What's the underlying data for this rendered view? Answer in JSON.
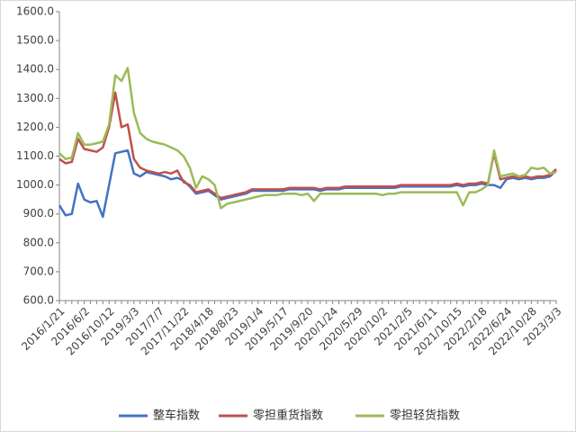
{
  "chart_data": {
    "type": "line",
    "categories": [
      "2016/1/21",
      null,
      null,
      null,
      "2016/6/2",
      null,
      null,
      null,
      "2016/10/12",
      null,
      null,
      null,
      "2019/3/3",
      null,
      null,
      null,
      "2017/7/7",
      null,
      null,
      null,
      "2017/11/22",
      null,
      null,
      null,
      "2018/4/18",
      null,
      null,
      null,
      "2018/8/23",
      null,
      null,
      null,
      "2019/1/4",
      null,
      null,
      null,
      "2019/5/17",
      null,
      null,
      null,
      "2019/9/20",
      null,
      null,
      null,
      "2020/1/24",
      null,
      null,
      null,
      "2020/5/29",
      null,
      null,
      null,
      "2020/10/2",
      null,
      null,
      null,
      "2021/2/5",
      null,
      null,
      null,
      "2021/6/11",
      null,
      null,
      null,
      "2021/10/15",
      null,
      null,
      null,
      "2022/2/18",
      null,
      null,
      null,
      "2022/6/24",
      null,
      null,
      null,
      "2022/10/28",
      null,
      null,
      null,
      "2023/3/3"
    ],
    "series": [
      {
        "name": "整车指数",
        "color": "#4472c4",
        "values": [
          930,
          895,
          900,
          1005,
          950,
          940,
          945,
          890,
          1000,
          1110,
          1115,
          1120,
          1040,
          1030,
          1045,
          1040,
          1035,
          1030,
          1020,
          1025,
          1015,
          995,
          970,
          975,
          980,
          965,
          950,
          955,
          960,
          965,
          970,
          980,
          980,
          980,
          980,
          980,
          980,
          985,
          985,
          985,
          985,
          985,
          980,
          985,
          985,
          985,
          990,
          990,
          990,
          990,
          990,
          990,
          990,
          990,
          990,
          995,
          995,
          995,
          995,
          995,
          995,
          995,
          995,
          995,
          1000,
          995,
          1000,
          1000,
          1005,
          1000,
          1000,
          990,
          1020,
          1025,
          1020,
          1025,
          1020,
          1025,
          1025,
          1030,
          1050
        ]
      },
      {
        "name": "零担重货指数",
        "color": "#c0504d",
        "values": [
          1090,
          1075,
          1080,
          1160,
          1125,
          1120,
          1115,
          1130,
          1200,
          1320,
          1200,
          1210,
          1090,
          1060,
          1050,
          1045,
          1040,
          1045,
          1040,
          1050,
          1010,
          1000,
          975,
          980,
          985,
          970,
          955,
          960,
          965,
          970,
          975,
          985,
          985,
          985,
          985,
          985,
          985,
          990,
          990,
          990,
          990,
          990,
          985,
          990,
          990,
          990,
          995,
          995,
          995,
          995,
          995,
          995,
          995,
          995,
          995,
          1000,
          1000,
          1000,
          1000,
          1000,
          1000,
          1000,
          1000,
          1000,
          1005,
          1000,
          1005,
          1005,
          1010,
          1005,
          1110,
          1020,
          1025,
          1030,
          1025,
          1030,
          1025,
          1030,
          1030,
          1035,
          1055
        ]
      },
      {
        "name": "零担轻货指数",
        "color": "#9bbb59",
        "values": [
          1110,
          1090,
          1095,
          1180,
          1140,
          1140,
          1145,
          1150,
          1210,
          1380,
          1360,
          1405,
          1250,
          1180,
          1160,
          1150,
          1145,
          1140,
          1130,
          1120,
          1100,
          1060,
          990,
          1030,
          1020,
          1000,
          920,
          935,
          940,
          945,
          950,
          955,
          960,
          965,
          965,
          965,
          970,
          970,
          970,
          965,
          970,
          945,
          970,
          970,
          970,
          970,
          970,
          970,
          970,
          970,
          970,
          970,
          965,
          970,
          970,
          975,
          975,
          975,
          975,
          975,
          975,
          975,
          975,
          975,
          975,
          930,
          975,
          975,
          985,
          1000,
          1120,
          1030,
          1035,
          1040,
          1030,
          1035,
          1060,
          1055,
          1060,
          1040,
          1045
        ]
      }
    ],
    "ylim": [
      600,
      1600
    ],
    "yticks": [
      {
        "value": 600,
        "label": "600.0"
      },
      {
        "value": 700,
        "label": "700.0"
      },
      {
        "value": 800,
        "label": "800.0"
      },
      {
        "value": 900,
        "label": "900.0"
      },
      {
        "value": 1000,
        "label": "1000.0"
      },
      {
        "value": 1100,
        "label": "1100.0"
      },
      {
        "value": 1200,
        "label": "1200.0"
      },
      {
        "value": 1300,
        "label": "1300.0"
      },
      {
        "value": 1400,
        "label": "1400.0"
      },
      {
        "value": 1500,
        "label": "1500.0"
      },
      {
        "value": 1600,
        "label": "1600.0"
      }
    ],
    "grid": false
  }
}
